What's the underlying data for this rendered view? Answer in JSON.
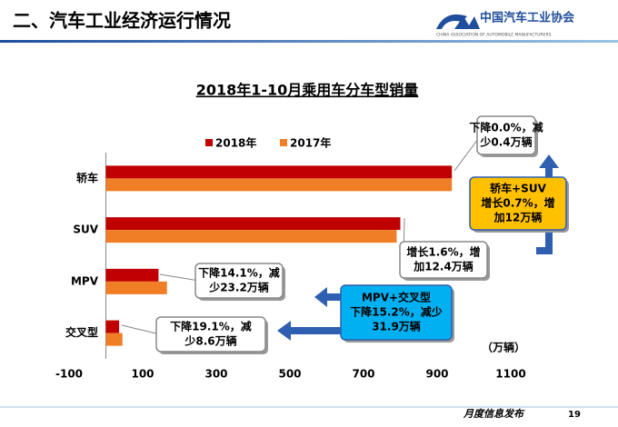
{
  "header": {
    "title": "二、汽车工业经济运行情况",
    "logo": "中国汽车工业协会",
    "logo_sub": "CHINA ASSOCIATION OF AUTOMOBILE MANUFACTURERS"
  },
  "chart_data": {
    "type": "bar",
    "orientation": "horizontal",
    "title": "2018年1-10月乘用车分车型销量",
    "categories": [
      "轿车",
      "SUV",
      "MPV",
      "交叉型"
    ],
    "series": [
      {
        "name": "2018年",
        "color": "#c00000",
        "values": [
          940,
          800,
          143,
          36
        ]
      },
      {
        "name": "2017年",
        "color": "#f07e26",
        "values": [
          940,
          790,
          166,
          45
        ]
      }
    ],
    "xlim": [
      -100,
      1100
    ],
    "xticks": [
      -100,
      100,
      300,
      500,
      700,
      900,
      1100
    ],
    "unit": "（万辆）",
    "annotations": [
      [
        "下降0.0%，减",
        "少0.4万辆"
      ],
      [
        "轿车+SUV",
        "增长0.7%，增",
        "加12万辆"
      ],
      [
        "增长1.6%，增",
        "加12.4万辆"
      ],
      [
        "下降14.1%，减",
        "少23.2万辆"
      ],
      [
        "MPV+交叉型",
        "下降15.2%，减少",
        "31.9万辆"
      ],
      [
        "下降19.1%，减",
        "少8.6万辆"
      ]
    ]
  },
  "footer": {
    "text": "月度信息发布",
    "page": "19"
  }
}
